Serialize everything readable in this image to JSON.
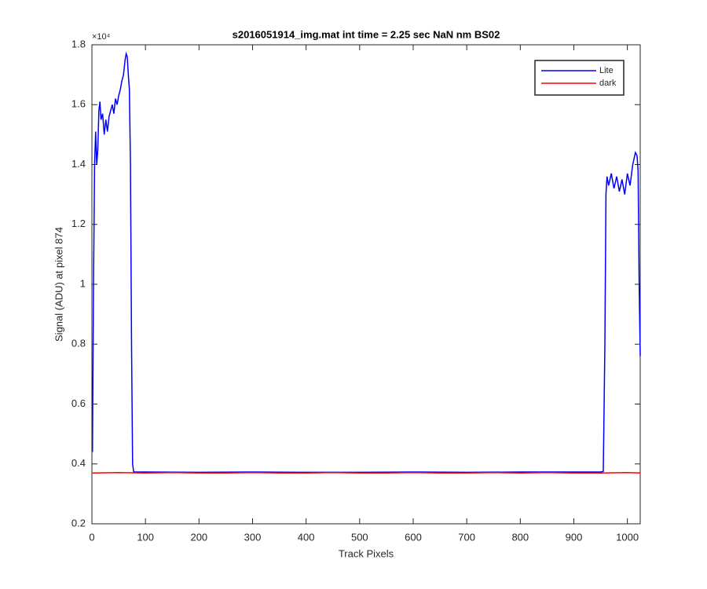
{
  "chart_data": {
    "type": "line",
    "title": "s2016051914_img.mat int time = 2.25 sec  NaN nm BS02",
    "x_label": "Track Pixels",
    "y_label": "Signal (ADU) at pixel 874",
    "y_exponent_label": "×10⁴",
    "xlim": [
      0,
      1024
    ],
    "ylim": [
      0.2,
      1.8
    ],
    "xticks": [
      0,
      100,
      200,
      300,
      400,
      500,
      600,
      700,
      800,
      900,
      1000
    ],
    "yticks": [
      0.2,
      0.4,
      0.6,
      0.8,
      1,
      1.2,
      1.4,
      1.6,
      1.8
    ],
    "grid": false,
    "legend_position": "northeast",
    "series": [
      {
        "name": "Lite",
        "color": "#0000ff",
        "x": [
          1,
          3,
          5,
          7,
          9,
          11,
          13,
          15,
          17,
          20,
          23,
          26,
          29,
          32,
          35,
          38,
          41,
          44,
          47,
          50,
          53,
          56,
          59,
          62,
          64,
          66,
          68,
          70,
          72,
          74,
          76,
          78,
          100,
          200,
          300,
          400,
          500,
          600,
          700,
          800,
          900,
          950,
          955,
          958,
          960,
          962,
          965,
          970,
          975,
          980,
          985,
          990,
          995,
          1000,
          1005,
          1010,
          1015,
          1018,
          1020,
          1022,
          1024
        ],
        "values": [
          0.44,
          1.0,
          1.4,
          1.51,
          1.4,
          1.45,
          1.58,
          1.61,
          1.55,
          1.57,
          1.5,
          1.55,
          1.51,
          1.56,
          1.58,
          1.6,
          1.57,
          1.62,
          1.6,
          1.63,
          1.65,
          1.68,
          1.7,
          1.75,
          1.77,
          1.76,
          1.7,
          1.65,
          1.4,
          0.8,
          0.4,
          0.373,
          0.373,
          0.372,
          0.373,
          0.372,
          0.372,
          0.373,
          0.372,
          0.373,
          0.373,
          0.373,
          0.375,
          0.8,
          1.3,
          1.36,
          1.33,
          1.37,
          1.32,
          1.36,
          1.31,
          1.35,
          1.3,
          1.37,
          1.33,
          1.4,
          1.44,
          1.43,
          1.38,
          1.0,
          0.76
        ]
      },
      {
        "name": "dark",
        "color": "#ff0000",
        "x": [
          1,
          50,
          100,
          150,
          200,
          250,
          300,
          350,
          400,
          450,
          500,
          550,
          600,
          650,
          700,
          750,
          800,
          850,
          900,
          950,
          1000,
          1024
        ],
        "values": [
          0.37,
          0.371,
          0.37,
          0.371,
          0.37,
          0.37,
          0.371,
          0.37,
          0.37,
          0.371,
          0.37,
          0.37,
          0.371,
          0.37,
          0.37,
          0.371,
          0.37,
          0.371,
          0.37,
          0.37,
          0.371,
          0.37
        ]
      }
    ]
  }
}
